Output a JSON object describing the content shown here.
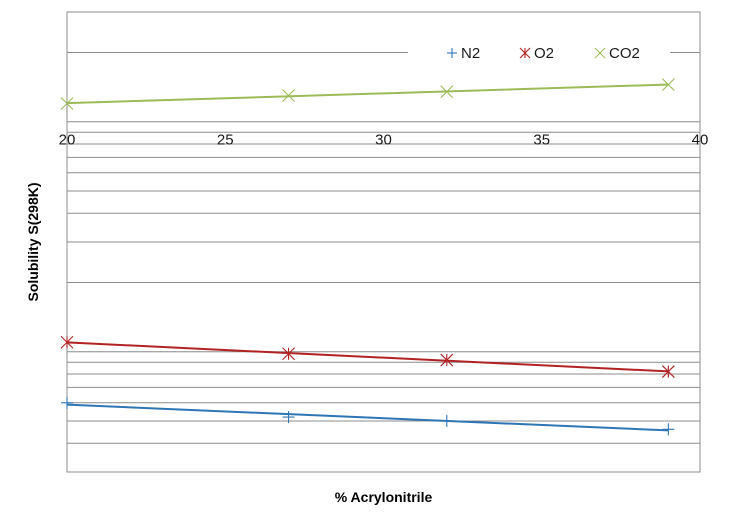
{
  "chart_data": {
    "type": "scatter",
    "xlabel": "% Acrylonitrile",
    "ylabel": "Solubility S(298K)",
    "xlim": [
      20,
      40
    ],
    "x_ticks": [
      "20",
      "25",
      "30",
      "35",
      "40"
    ],
    "y_scale": "log",
    "y_tick_labels_shown": false,
    "grid": "horizontal log gridlines",
    "legend_position": "top-right",
    "series": [
      {
        "name": "N2",
        "marker": "plus",
        "color": "#2E75B6",
        "x": [
          20,
          27,
          32,
          39
        ],
        "y": [
          0.06,
          0.052,
          0.05,
          0.046
        ]
      },
      {
        "name": "O2",
        "marker": "star",
        "color": "#B22222",
        "x": [
          20,
          27,
          32,
          39
        ],
        "y": [
          0.11,
          0.098,
          0.092,
          0.082
        ]
      },
      {
        "name": "CO2",
        "marker": "cross",
        "color": "#9BBB59",
        "x": [
          20,
          27,
          32,
          39
        ],
        "y": [
          1.2,
          1.3,
          1.35,
          1.45
        ]
      }
    ]
  }
}
